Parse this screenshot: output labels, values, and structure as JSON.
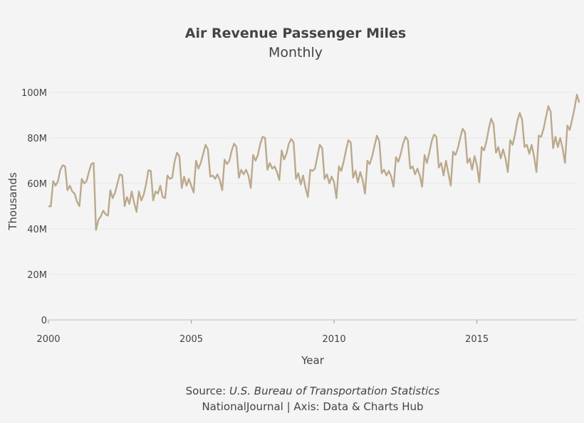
{
  "header": {
    "title": "Air Revenue Passenger Miles",
    "subtitle": "Monthly"
  },
  "footer": {
    "source_label": "Source: ",
    "source_name": "U.S. Bureau of Transportation Statistics",
    "credit": "NationalJournal | Axis: Data & Charts Hub"
  },
  "colors": {
    "line": "#bba98d",
    "grid": "#e6e6e6",
    "axis": "#bbbbbb",
    "background": "#f4f4f4"
  },
  "chart_data": {
    "type": "line",
    "title": "Air Revenue Passenger Miles",
    "subtitle": "Monthly",
    "xlabel": "Year",
    "ylabel": "Thousands",
    "xlim": [
      2000,
      2018.5
    ],
    "ylim": [
      0,
      100000000
    ],
    "x_ticks": [
      2000,
      2005,
      2010,
      2015
    ],
    "x_tick_labels": [
      "2000",
      "2005",
      "2010",
      "2015"
    ],
    "y_ticks": [
      0,
      20000000,
      40000000,
      60000000,
      80000000,
      100000000
    ],
    "y_tick_labels": [
      "0",
      "20M",
      "40M",
      "60M",
      "80M",
      "100M"
    ],
    "grid": true,
    "legend": "none",
    "series": [
      {
        "x_start": "2000-01",
        "frequency": "monthly",
        "values": [
          50000000,
          49900000,
          61000000,
          59000000,
          61000000,
          66000000,
          68000000,
          67500000,
          57000000,
          59000000,
          56500000,
          55500000,
          52000000,
          50000000,
          62000000,
          60000000,
          61000000,
          65000000,
          68500000,
          69000000,
          39500000,
          44000000,
          45500000,
          48000000,
          46500000,
          45800000,
          57000000,
          53500000,
          56000000,
          60000000,
          64000000,
          63500000,
          50000000,
          54000000,
          51000000,
          56500000,
          51500000,
          47500000,
          56500000,
          52500000,
          55000000,
          59500000,
          65800000,
          65500000,
          52500000,
          56500000,
          55500000,
          59000000,
          54000000,
          53500000,
          63500000,
          62000000,
          62500000,
          69500000,
          73500000,
          72000000,
          58000000,
          63000000,
          59000000,
          62000000,
          59000000,
          56000000,
          70000000,
          66500000,
          69000000,
          73000000,
          77000000,
          75000000,
          63000000,
          63500000,
          62000000,
          64000000,
          61500000,
          57000000,
          70500000,
          68500000,
          70000000,
          74500000,
          77500000,
          76000000,
          62500000,
          66000000,
          64000000,
          66000000,
          63500000,
          58000000,
          72500000,
          70000000,
          72500000,
          77500000,
          80500000,
          80000000,
          66000000,
          69000000,
          66500000,
          67500000,
          65000000,
          61500000,
          74500000,
          70500000,
          73000000,
          77500000,
          79500000,
          78000000,
          62000000,
          64500000,
          59500000,
          63500000,
          58000000,
          54000000,
          66000000,
          65500000,
          66500000,
          72000000,
          77000000,
          75500000,
          62000000,
          64000000,
          60000000,
          63000000,
          60500000,
          53500000,
          67500000,
          65500000,
          69500000,
          74500000,
          79000000,
          78000000,
          62500000,
          65500000,
          60500000,
          65000000,
          61500000,
          55500000,
          70000000,
          68500000,
          72000000,
          76500000,
          81000000,
          78500000,
          64500000,
          66000000,
          63500000,
          65500000,
          63000000,
          58500000,
          71500000,
          69500000,
          73000000,
          77500000,
          80500000,
          79000000,
          66500000,
          67500000,
          64000000,
          66500000,
          63500000,
          58500000,
          72500000,
          69000000,
          73500000,
          78500000,
          81500000,
          80500000,
          67000000,
          69000000,
          63500000,
          70000000,
          64500000,
          59000000,
          74000000,
          72500000,
          75500000,
          80000000,
          84000000,
          82500000,
          69000000,
          71000000,
          66000000,
          72000000,
          68000000,
          60500000,
          76000000,
          74500000,
          78500000,
          84000000,
          88500000,
          86000000,
          73500000,
          76000000,
          71000000,
          75000000,
          71000000,
          65000000,
          79000000,
          77000000,
          81500000,
          87500000,
          91000000,
          88000000,
          76000000,
          77000000,
          73000000,
          77000000,
          72000000,
          65000000,
          81000000,
          80500000,
          84000000,
          89000000,
          94000000,
          91500000,
          75500000,
          80500000,
          76000000,
          80000000,
          75500000,
          69000000,
          85500000,
          83500000,
          88000000,
          93000000,
          99000000,
          95500000
        ]
      }
    ]
  }
}
